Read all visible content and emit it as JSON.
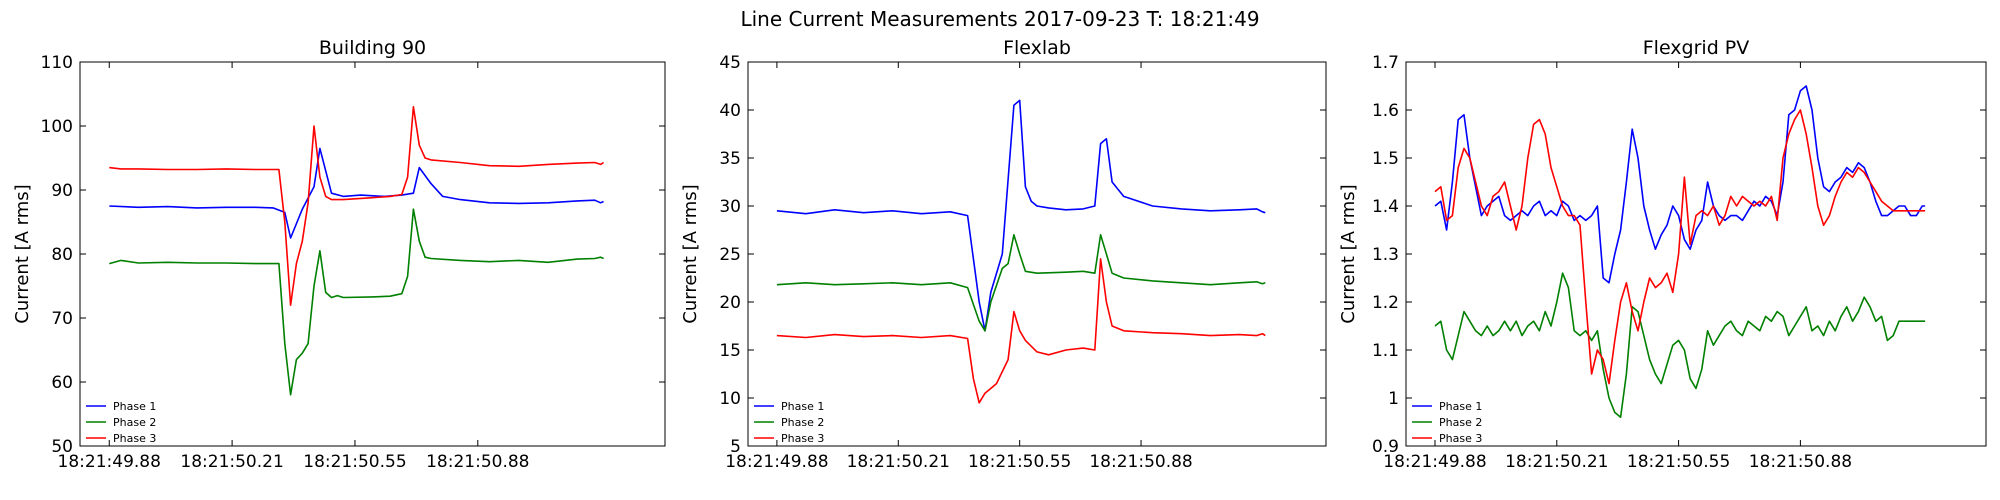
{
  "figure": {
    "suptitle": "Line Current Measurements 2017-09-23 T: 18:21:49"
  },
  "chart_data": [
    {
      "type": "line",
      "title": "Building 90",
      "xlabel": "",
      "ylabel": "Current [A rms]",
      "xlim": [
        0,
        1
      ],
      "ylim": [
        50,
        110
      ],
      "yticks": [
        50,
        60,
        70,
        80,
        90,
        100,
        110
      ],
      "xtick_labels": [
        "18:21:49.88",
        "18:21:50.21",
        "18:21:50.55",
        "18:21:50.88"
      ],
      "xtick_positions": [
        0.05,
        0.26,
        0.47,
        0.68
      ],
      "legend_position": "lower-left",
      "grid": false,
      "series": [
        {
          "name": "Phase 1",
          "color": "#0000ff",
          "x": [
            0.05,
            0.1,
            0.15,
            0.2,
            0.25,
            0.3,
            0.33,
            0.35,
            0.36,
            0.38,
            0.4,
            0.41,
            0.42,
            0.43,
            0.45,
            0.48,
            0.52,
            0.55,
            0.57,
            0.58,
            0.6,
            0.62,
            0.65,
            0.7,
            0.75,
            0.8,
            0.85,
            0.88,
            0.89,
            0.895
          ],
          "y": [
            87.5,
            87.3,
            87.4,
            87.2,
            87.3,
            87.3,
            87.2,
            86.5,
            82.5,
            87.0,
            90.5,
            96.5,
            93.0,
            89.5,
            89.0,
            89.2,
            89.0,
            89.2,
            89.5,
            93.5,
            91.0,
            89.0,
            88.5,
            88.0,
            87.9,
            88.0,
            88.3,
            88.4,
            88.0,
            88.2
          ]
        },
        {
          "name": "Phase 2",
          "color": "#008000",
          "x": [
            0.05,
            0.07,
            0.1,
            0.15,
            0.2,
            0.25,
            0.3,
            0.34,
            0.35,
            0.36,
            0.37,
            0.38,
            0.39,
            0.4,
            0.41,
            0.42,
            0.43,
            0.44,
            0.45,
            0.5,
            0.53,
            0.55,
            0.56,
            0.57,
            0.58,
            0.59,
            0.6,
            0.65,
            0.7,
            0.75,
            0.8,
            0.85,
            0.88,
            0.89,
            0.895
          ],
          "y": [
            78.5,
            79.0,
            78.6,
            78.7,
            78.6,
            78.6,
            78.5,
            78.5,
            66.0,
            58.0,
            63.5,
            64.5,
            66.0,
            75.0,
            80.5,
            74.0,
            73.2,
            73.5,
            73.2,
            73.3,
            73.4,
            73.8,
            76.5,
            87.0,
            82.0,
            79.5,
            79.3,
            79.0,
            78.8,
            79.0,
            78.7,
            79.2,
            79.3,
            79.5,
            79.3
          ]
        },
        {
          "name": "Phase 3",
          "color": "#ff0000",
          "x": [
            0.05,
            0.07,
            0.1,
            0.15,
            0.2,
            0.25,
            0.3,
            0.34,
            0.35,
            0.36,
            0.37,
            0.38,
            0.39,
            0.4,
            0.41,
            0.42,
            0.43,
            0.45,
            0.5,
            0.53,
            0.55,
            0.56,
            0.57,
            0.58,
            0.59,
            0.6,
            0.65,
            0.7,
            0.75,
            0.8,
            0.85,
            0.88,
            0.89,
            0.895
          ],
          "y": [
            93.5,
            93.3,
            93.3,
            93.2,
            93.2,
            93.3,
            93.2,
            93.2,
            85.0,
            72.0,
            78.5,
            82.0,
            88.0,
            100.0,
            92.0,
            89.0,
            88.5,
            88.5,
            88.8,
            89.0,
            89.3,
            92.0,
            103.0,
            97.0,
            95.0,
            94.7,
            94.3,
            93.8,
            93.7,
            94.0,
            94.2,
            94.3,
            94.0,
            94.3
          ]
        }
      ]
    },
    {
      "type": "line",
      "title": "Flexlab",
      "xlabel": "",
      "ylabel": "Current [A rms]",
      "xlim": [
        0,
        1
      ],
      "ylim": [
        5,
        45
      ],
      "yticks": [
        5,
        10,
        15,
        20,
        25,
        30,
        35,
        40,
        45
      ],
      "xtick_labels": [
        "18:21:49.88",
        "18:21:50.21",
        "18:21:50.55",
        "18:21:50.88"
      ],
      "xtick_positions": [
        0.05,
        0.26,
        0.47,
        0.68
      ],
      "legend_position": "lower-left",
      "grid": false,
      "series": [
        {
          "name": "Phase 1",
          "color": "#0000ff",
          "x": [
            0.05,
            0.1,
            0.15,
            0.2,
            0.25,
            0.3,
            0.35,
            0.38,
            0.4,
            0.41,
            0.42,
            0.44,
            0.46,
            0.47,
            0.48,
            0.49,
            0.5,
            0.52,
            0.55,
            0.58,
            0.6,
            0.61,
            0.62,
            0.63,
            0.65,
            0.7,
            0.75,
            0.8,
            0.85,
            0.88,
            0.89,
            0.895
          ],
          "y": [
            29.5,
            29.2,
            29.6,
            29.3,
            29.5,
            29.2,
            29.4,
            29.0,
            20.0,
            17.0,
            21.0,
            25.0,
            40.5,
            41.0,
            32.0,
            30.5,
            30.0,
            29.8,
            29.6,
            29.7,
            30.0,
            36.5,
            37.0,
            32.5,
            31.0,
            30.0,
            29.7,
            29.5,
            29.6,
            29.7,
            29.4,
            29.3
          ]
        },
        {
          "name": "Phase 2",
          "color": "#008000",
          "x": [
            0.05,
            0.1,
            0.15,
            0.2,
            0.25,
            0.3,
            0.35,
            0.38,
            0.4,
            0.41,
            0.42,
            0.44,
            0.45,
            0.46,
            0.47,
            0.48,
            0.5,
            0.55,
            0.58,
            0.6,
            0.61,
            0.62,
            0.63,
            0.65,
            0.7,
            0.75,
            0.8,
            0.85,
            0.88,
            0.89,
            0.895
          ],
          "y": [
            21.8,
            22.0,
            21.8,
            21.9,
            22.0,
            21.8,
            22.0,
            21.5,
            18.0,
            17.0,
            20.0,
            23.5,
            24.0,
            27.0,
            25.0,
            23.2,
            23.0,
            23.1,
            23.2,
            23.0,
            27.0,
            25.0,
            23.0,
            22.5,
            22.2,
            22.0,
            21.8,
            22.0,
            22.1,
            21.9,
            22.0
          ]
        },
        {
          "name": "Phase 3",
          "color": "#ff0000",
          "x": [
            0.05,
            0.1,
            0.15,
            0.2,
            0.25,
            0.3,
            0.35,
            0.38,
            0.39,
            0.4,
            0.41,
            0.43,
            0.45,
            0.46,
            0.47,
            0.48,
            0.5,
            0.52,
            0.55,
            0.58,
            0.6,
            0.61,
            0.62,
            0.63,
            0.65,
            0.7,
            0.75,
            0.8,
            0.85,
            0.88,
            0.89,
            0.895
          ],
          "y": [
            16.5,
            16.3,
            16.6,
            16.4,
            16.5,
            16.3,
            16.5,
            16.2,
            12.0,
            9.5,
            10.5,
            11.5,
            14.0,
            19.0,
            17.0,
            16.0,
            14.8,
            14.5,
            15.0,
            15.2,
            15.0,
            24.5,
            20.0,
            17.5,
            17.0,
            16.8,
            16.7,
            16.5,
            16.6,
            16.5,
            16.7,
            16.5
          ]
        }
      ]
    },
    {
      "type": "line",
      "title": "Flexgrid PV",
      "xlabel": "",
      "ylabel": "Current [A rms]",
      "xlim": [
        0,
        1
      ],
      "ylim": [
        0.9,
        1.7
      ],
      "yticks": [
        0.9,
        1.0,
        1.1,
        1.2,
        1.3,
        1.4,
        1.5,
        1.6,
        1.7
      ],
      "xtick_labels": [
        "18:21:49.88",
        "18:21:50.21",
        "18:21:50.55",
        "18:21:50.88"
      ],
      "xtick_positions": [
        0.05,
        0.26,
        0.47,
        0.68
      ],
      "legend_position": "lower-left",
      "grid": false,
      "series": [
        {
          "name": "Phase 1",
          "color": "#0000ff",
          "x": [
            0.05,
            0.06,
            0.07,
            0.08,
            0.09,
            0.1,
            0.11,
            0.12,
            0.13,
            0.14,
            0.15,
            0.16,
            0.17,
            0.18,
            0.19,
            0.2,
            0.21,
            0.22,
            0.23,
            0.24,
            0.25,
            0.26,
            0.27,
            0.28,
            0.29,
            0.3,
            0.31,
            0.32,
            0.33,
            0.34,
            0.35,
            0.36,
            0.37,
            0.38,
            0.39,
            0.4,
            0.41,
            0.42,
            0.43,
            0.44,
            0.45,
            0.46,
            0.47,
            0.48,
            0.49,
            0.5,
            0.51,
            0.52,
            0.53,
            0.54,
            0.55,
            0.56,
            0.57,
            0.58,
            0.59,
            0.6,
            0.61,
            0.62,
            0.63,
            0.64,
            0.65,
            0.66,
            0.67,
            0.68,
            0.69,
            0.7,
            0.71,
            0.72,
            0.73,
            0.74,
            0.75,
            0.76,
            0.77,
            0.78,
            0.79,
            0.8,
            0.81,
            0.82,
            0.83,
            0.84,
            0.85,
            0.86,
            0.87,
            0.88,
            0.89,
            0.895
          ],
          "y": [
            1.4,
            1.41,
            1.35,
            1.45,
            1.58,
            1.59,
            1.5,
            1.44,
            1.38,
            1.4,
            1.41,
            1.42,
            1.38,
            1.37,
            1.38,
            1.39,
            1.38,
            1.4,
            1.41,
            1.38,
            1.39,
            1.38,
            1.41,
            1.4,
            1.37,
            1.38,
            1.37,
            1.38,
            1.4,
            1.25,
            1.24,
            1.3,
            1.35,
            1.45,
            1.56,
            1.5,
            1.4,
            1.35,
            1.31,
            1.34,
            1.36,
            1.4,
            1.38,
            1.33,
            1.31,
            1.35,
            1.37,
            1.45,
            1.4,
            1.38,
            1.37,
            1.38,
            1.38,
            1.37,
            1.39,
            1.41,
            1.4,
            1.42,
            1.41,
            1.38,
            1.45,
            1.59,
            1.6,
            1.64,
            1.65,
            1.6,
            1.5,
            1.44,
            1.43,
            1.45,
            1.46,
            1.48,
            1.47,
            1.49,
            1.48,
            1.45,
            1.41,
            1.38,
            1.38,
            1.39,
            1.4,
            1.4,
            1.38,
            1.38,
            1.4,
            1.4
          ]
        },
        {
          "name": "Phase 2",
          "color": "#008000",
          "x": [
            0.05,
            0.06,
            0.07,
            0.08,
            0.09,
            0.1,
            0.11,
            0.12,
            0.13,
            0.14,
            0.15,
            0.16,
            0.17,
            0.18,
            0.19,
            0.2,
            0.21,
            0.22,
            0.23,
            0.24,
            0.25,
            0.26,
            0.27,
            0.28,
            0.29,
            0.3,
            0.31,
            0.32,
            0.33,
            0.34,
            0.35,
            0.36,
            0.37,
            0.38,
            0.39,
            0.4,
            0.41,
            0.42,
            0.43,
            0.44,
            0.45,
            0.46,
            0.47,
            0.48,
            0.49,
            0.5,
            0.51,
            0.52,
            0.53,
            0.54,
            0.55,
            0.56,
            0.57,
            0.58,
            0.59,
            0.6,
            0.61,
            0.62,
            0.63,
            0.64,
            0.65,
            0.66,
            0.67,
            0.68,
            0.69,
            0.7,
            0.71,
            0.72,
            0.73,
            0.74,
            0.75,
            0.76,
            0.77,
            0.78,
            0.79,
            0.8,
            0.81,
            0.82,
            0.83,
            0.84,
            0.85,
            0.86,
            0.87,
            0.88,
            0.89,
            0.895
          ],
          "y": [
            1.15,
            1.16,
            1.1,
            1.08,
            1.13,
            1.18,
            1.16,
            1.14,
            1.13,
            1.15,
            1.13,
            1.14,
            1.16,
            1.14,
            1.16,
            1.13,
            1.15,
            1.16,
            1.14,
            1.18,
            1.15,
            1.2,
            1.26,
            1.23,
            1.14,
            1.13,
            1.14,
            1.12,
            1.14,
            1.06,
            1.0,
            0.97,
            0.96,
            1.05,
            1.19,
            1.18,
            1.13,
            1.08,
            1.05,
            1.03,
            1.07,
            1.11,
            1.12,
            1.1,
            1.04,
            1.02,
            1.06,
            1.14,
            1.11,
            1.13,
            1.15,
            1.16,
            1.14,
            1.13,
            1.16,
            1.15,
            1.14,
            1.17,
            1.16,
            1.18,
            1.17,
            1.13,
            1.15,
            1.17,
            1.19,
            1.14,
            1.15,
            1.13,
            1.16,
            1.14,
            1.17,
            1.19,
            1.16,
            1.18,
            1.21,
            1.19,
            1.16,
            1.17,
            1.12,
            1.13,
            1.16,
            1.16,
            1.16,
            1.16,
            1.16,
            1.16
          ]
        },
        {
          "name": "Phase 3",
          "color": "#ff0000",
          "x": [
            0.05,
            0.06,
            0.07,
            0.08,
            0.09,
            0.1,
            0.11,
            0.12,
            0.13,
            0.14,
            0.15,
            0.16,
            0.17,
            0.18,
            0.19,
            0.2,
            0.21,
            0.22,
            0.23,
            0.24,
            0.25,
            0.26,
            0.27,
            0.28,
            0.29,
            0.3,
            0.31,
            0.32,
            0.33,
            0.34,
            0.35,
            0.36,
            0.37,
            0.38,
            0.39,
            0.4,
            0.41,
            0.42,
            0.43,
            0.44,
            0.45,
            0.46,
            0.47,
            0.48,
            0.49,
            0.5,
            0.51,
            0.52,
            0.53,
            0.54,
            0.55,
            0.56,
            0.57,
            0.58,
            0.59,
            0.6,
            0.61,
            0.62,
            0.63,
            0.64,
            0.65,
            0.66,
            0.67,
            0.68,
            0.69,
            0.7,
            0.71,
            0.72,
            0.73,
            0.74,
            0.75,
            0.76,
            0.77,
            0.78,
            0.79,
            0.8,
            0.81,
            0.82,
            0.83,
            0.84,
            0.85,
            0.86,
            0.87,
            0.88,
            0.89,
            0.895
          ],
          "y": [
            1.43,
            1.44,
            1.37,
            1.38,
            1.48,
            1.52,
            1.5,
            1.45,
            1.4,
            1.38,
            1.42,
            1.43,
            1.45,
            1.4,
            1.35,
            1.4,
            1.5,
            1.57,
            1.58,
            1.55,
            1.48,
            1.44,
            1.4,
            1.38,
            1.38,
            1.36,
            1.2,
            1.05,
            1.1,
            1.08,
            1.03,
            1.12,
            1.2,
            1.24,
            1.18,
            1.14,
            1.2,
            1.25,
            1.23,
            1.24,
            1.26,
            1.22,
            1.3,
            1.46,
            1.32,
            1.38,
            1.39,
            1.38,
            1.4,
            1.36,
            1.38,
            1.42,
            1.4,
            1.42,
            1.41,
            1.4,
            1.41,
            1.4,
            1.42,
            1.37,
            1.5,
            1.55,
            1.58,
            1.6,
            1.55,
            1.48,
            1.4,
            1.36,
            1.38,
            1.42,
            1.45,
            1.47,
            1.46,
            1.48,
            1.47,
            1.45,
            1.43,
            1.41,
            1.4,
            1.39,
            1.39,
            1.39,
            1.39,
            1.39,
            1.39,
            1.39
          ]
        }
      ]
    }
  ]
}
